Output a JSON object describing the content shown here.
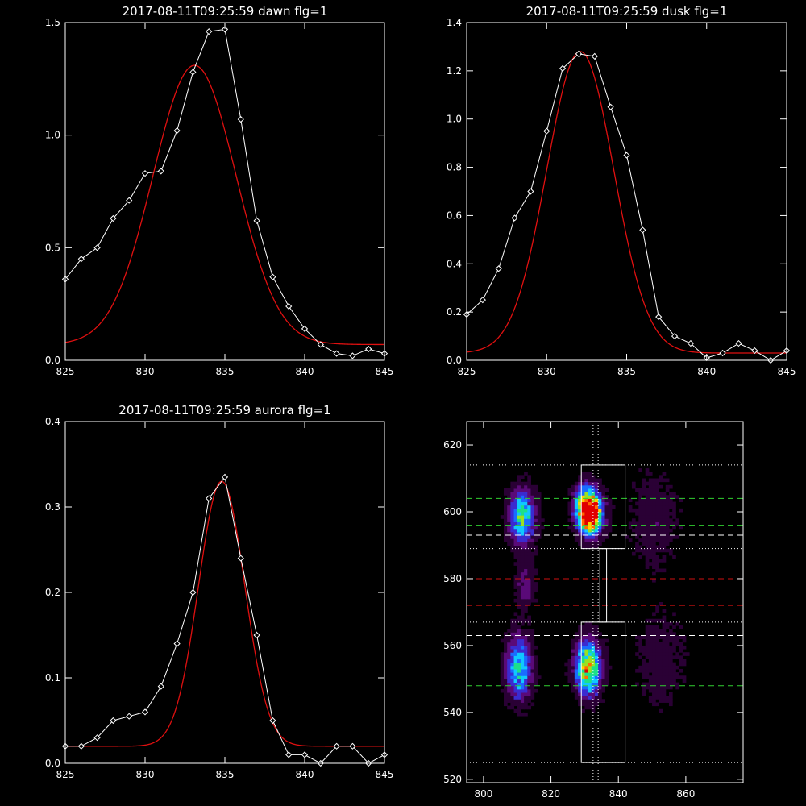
{
  "chart_data": [
    {
      "type": "line",
      "title": "2017-08-11T09:25:59 dawn flg=1",
      "xlim": [
        825,
        845
      ],
      "ylim": [
        0,
        1.5
      ],
      "xticks": [
        825,
        830,
        835,
        840,
        845
      ],
      "xtick_labels": [
        "825",
        "830",
        "835",
        "840",
        "845"
      ],
      "yticks": [
        0,
        0.5,
        1.0,
        1.5
      ],
      "ytick_labels": [
        "0.0",
        "0.5",
        "1.0",
        "1.5"
      ],
      "series": [
        {
          "kind": "observed",
          "color": "#ffffff",
          "marker": "diamond",
          "x": [
            825,
            826,
            827,
            828,
            829,
            830,
            831,
            832,
            833,
            834,
            835,
            836,
            837,
            838,
            839,
            840,
            841,
            842,
            843,
            844,
            845
          ],
          "y": [
            0.36,
            0.45,
            0.5,
            0.63,
            0.71,
            0.83,
            0.84,
            1.02,
            1.28,
            1.46,
            1.47,
            1.07,
            0.62,
            0.37,
            0.24,
            0.14,
            0.07,
            0.03,
            0.02,
            0.05,
            0.03
          ]
        },
        {
          "kind": "gaussian-fit",
          "color": "#e01010",
          "peak": 1.24,
          "center": 833.1,
          "sigma": 2.6,
          "offset": 0.07
        }
      ]
    },
    {
      "type": "line",
      "title": "2017-08-11T09:25:59 dusk flg=1",
      "xlim": [
        825,
        845
      ],
      "ylim": [
        0,
        1.4
      ],
      "xticks": [
        825,
        830,
        835,
        840,
        845
      ],
      "xtick_labels": [
        "825",
        "830",
        "835",
        "840",
        "845"
      ],
      "yticks": [
        0,
        0.2,
        0.4,
        0.6,
        0.8,
        1.0,
        1.2,
        1.4
      ],
      "ytick_labels": [
        "0.0",
        "0.2",
        "0.4",
        "0.6",
        "0.8",
        "1.0",
        "1.2",
        "1.4"
      ],
      "series": [
        {
          "kind": "observed",
          "color": "#ffffff",
          "marker": "diamond",
          "x": [
            825,
            826,
            827,
            828,
            829,
            830,
            831,
            832,
            833,
            834,
            835,
            836,
            837,
            838,
            839,
            840,
            841,
            842,
            843,
            844,
            845
          ],
          "y": [
            0.19,
            0.25,
            0.38,
            0.59,
            0.7,
            0.95,
            1.21,
            1.27,
            1.26,
            1.05,
            0.85,
            0.54,
            0.18,
            0.1,
            0.07,
            0.01,
            0.03,
            0.07,
            0.04,
            0.0,
            0.04
          ]
        },
        {
          "kind": "gaussian-fit",
          "color": "#e01010",
          "peak": 1.25,
          "center": 832.1,
          "sigma": 2.1,
          "offset": 0.03
        }
      ]
    },
    {
      "type": "line",
      "title": "2017-08-11T09:25:59 aurora flg=1",
      "xlim": [
        825,
        845
      ],
      "ylim": [
        0,
        0.4
      ],
      "xticks": [
        825,
        830,
        835,
        840,
        845
      ],
      "xtick_labels": [
        "825",
        "830",
        "835",
        "840",
        "845"
      ],
      "yticks": [
        0,
        0.1,
        0.2,
        0.3,
        0.4
      ],
      "ytick_labels": [
        "0.0",
        "0.1",
        "0.2",
        "0.3",
        "0.4"
      ],
      "series": [
        {
          "kind": "observed",
          "color": "#ffffff",
          "marker": "diamond",
          "x": [
            825,
            826,
            827,
            828,
            829,
            830,
            831,
            832,
            833,
            834,
            835,
            836,
            837,
            838,
            839,
            840,
            841,
            842,
            843,
            844,
            845
          ],
          "y": [
            0.02,
            0.02,
            0.03,
            0.05,
            0.055,
            0.06,
            0.09,
            0.14,
            0.2,
            0.31,
            0.335,
            0.24,
            0.15,
            0.05,
            0.01,
            0.01,
            0.0,
            0.02,
            0.02,
            0.0,
            0.01
          ]
        },
        {
          "kind": "gaussian-fit",
          "color": "#e01010",
          "peak": 0.31,
          "center": 834.8,
          "sigma": 1.45,
          "offset": 0.02
        }
      ]
    },
    {
      "type": "heatmap",
      "title": "",
      "xlim": [
        795,
        877
      ],
      "ylim": [
        519,
        627
      ],
      "xticks": [
        800,
        820,
        840,
        860
      ],
      "xtick_labels": [
        "800",
        "820",
        "840",
        "860"
      ],
      "yticks": [
        520,
        540,
        560,
        580,
        600,
        620
      ],
      "ytick_labels": [
        "520",
        "540",
        "560",
        "580",
        "600",
        "620"
      ],
      "colormap": [
        "#000000",
        "#2a0035",
        "#5a0a78",
        "#3b2bd0",
        "#1a6cff",
        "#10c8ff",
        "#1ce08a",
        "#9ce020",
        "#ffd000",
        "#ff6a00",
        "#e00000"
      ],
      "blobs": [
        {
          "x": 811,
          "y": 598,
          "sx": 2.6,
          "sy": 5.5,
          "amp": 0.62
        },
        {
          "x": 831.5,
          "y": 599,
          "sx": 2.4,
          "sy": 4.2,
          "amp": 1.0
        },
        {
          "x": 829.5,
          "y": 601,
          "sx": 2.2,
          "sy": 4.5,
          "amp": 0.55
        },
        {
          "x": 810,
          "y": 553,
          "sx": 2.6,
          "sy": 6.5,
          "amp": 0.55
        },
        {
          "x": 830.5,
          "y": 553,
          "sx": 2.6,
          "sy": 5.5,
          "amp": 0.85
        },
        {
          "x": 850,
          "y": 597,
          "sx": 5,
          "sy": 10,
          "amp": 0.12
        },
        {
          "x": 852,
          "y": 555,
          "sx": 5,
          "sy": 10,
          "amp": 0.12
        },
        {
          "x": 812,
          "y": 578,
          "sx": 2,
          "sy": 5,
          "amp": 0.2
        }
      ],
      "boxes": [
        {
          "x0": 829,
          "x1": 842,
          "y0": 589,
          "y1": 614
        },
        {
          "x0": 829,
          "x1": 842,
          "y0": 525,
          "y1": 567
        },
        {
          "x0": 834.5,
          "x1": 836.5,
          "y0": 567,
          "y1": 589
        }
      ],
      "hlines": [
        {
          "y": 614,
          "color": "#ffffff",
          "style": "dotted"
        },
        {
          "y": 604,
          "color": "#30d030",
          "style": "dashed"
        },
        {
          "y": 596,
          "color": "#30d030",
          "style": "dashed"
        },
        {
          "y": 593,
          "color": "#ffffff",
          "style": "dashed"
        },
        {
          "y": 589,
          "color": "#ffffff",
          "style": "dotted"
        },
        {
          "y": 580,
          "color": "#d01010",
          "style": "dashed"
        },
        {
          "y": 576,
          "color": "#ffffff",
          "style": "dotted"
        },
        {
          "y": 572,
          "color": "#d01010",
          "style": "dashed"
        },
        {
          "y": 567,
          "color": "#ffffff",
          "style": "dotted"
        },
        {
          "y": 563,
          "color": "#ffffff",
          "style": "dashed"
        },
        {
          "y": 556,
          "color": "#30d030",
          "style": "dashed"
        },
        {
          "y": 548,
          "color": "#30d030",
          "style": "dashed"
        },
        {
          "y": 525,
          "color": "#ffffff",
          "style": "dotted"
        }
      ],
      "vlines": [
        {
          "x": 832.5,
          "color": "#ffffff",
          "style": "dotted"
        },
        {
          "x": 834,
          "color": "#ffffff",
          "style": "dotted"
        }
      ]
    }
  ]
}
